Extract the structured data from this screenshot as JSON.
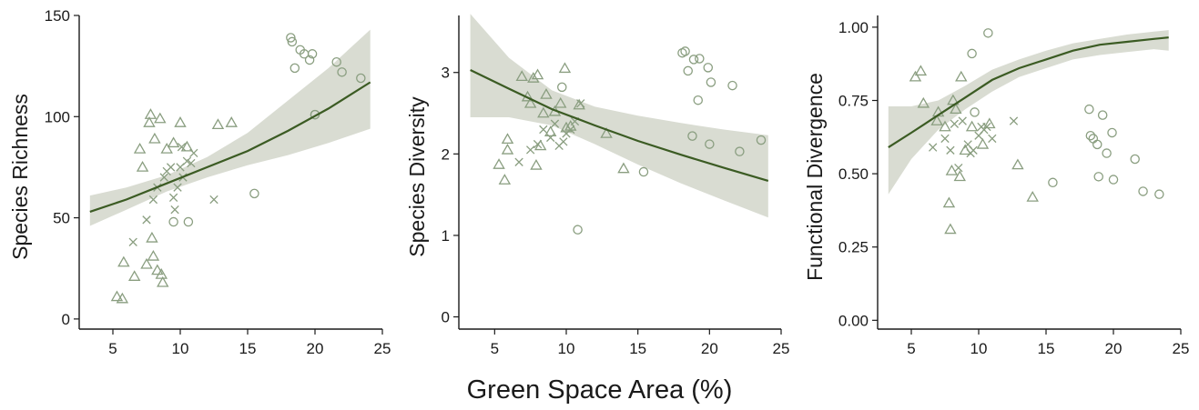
{
  "figure": {
    "shared_xlabel": "Green Space Area (%)"
  },
  "colors": {
    "point": "#8a9e80",
    "line": "#3b5b23",
    "band": "#d9dcd2",
    "axis": "#1a1a1a"
  },
  "chart_data": [
    {
      "type": "scatter",
      "title": "",
      "xlabel": "",
      "ylabel": "Species Richness",
      "xlim": [
        2.5,
        25
      ],
      "ylim": [
        -5,
        150
      ],
      "xticks": [
        5,
        10,
        15,
        20,
        25
      ],
      "yticks": [
        0,
        50,
        100,
        150
      ],
      "ytick_labels": [
        "0",
        "50",
        "100",
        "150"
      ],
      "grid": false,
      "fit": {
        "x": [
          3.3,
          6,
          9,
          12,
          15,
          18,
          21,
          24.1
        ],
        "y": [
          53,
          59,
          67,
          75,
          83,
          93,
          104,
          117
        ],
        "lower": [
          46,
          54,
          63,
          70,
          76,
          81,
          87,
          94
        ],
        "upper": [
          61,
          65,
          71,
          80,
          92,
          108,
          124,
          143
        ]
      },
      "series": [
        {
          "marker": "triangle",
          "x": [
            5.3,
            5.7,
            5.8,
            6.6,
            7.0,
            7.2,
            7.5,
            7.7,
            7.8,
            7.9,
            8.0,
            8.1,
            8.3,
            8.5,
            8.6,
            8.7,
            9.0,
            9.5,
            10.0,
            10.5,
            12.8,
            13.8
          ],
          "y": [
            11,
            10,
            28,
            21,
            84,
            75,
            27,
            97,
            101,
            40,
            31,
            89,
            24,
            99,
            22,
            18,
            84,
            87,
            97,
            85,
            96,
            97
          ]
        },
        {
          "marker": "circle",
          "x": [
            15.5,
            18.2,
            18.3,
            18.5,
            18.9,
            19.2,
            19.6,
            19.8,
            20.0,
            21.6,
            22.0,
            23.4,
            20.0,
            9.5,
            10.6
          ],
          "y": [
            62,
            139,
            137,
            124,
            133,
            131,
            128,
            131,
            101,
            127,
            122,
            119,
            101,
            48,
            48
          ]
        },
        {
          "marker": "x",
          "x": [
            6.5,
            7.5,
            8.0,
            8.3,
            8.8,
            9.0,
            9.3,
            9.5,
            9.8,
            10.0,
            10.2,
            10.5,
            10.8,
            11.0,
            12.5,
            9.6,
            10.1
          ],
          "y": [
            38,
            49,
            59,
            65,
            70,
            73,
            75,
            60,
            65,
            75,
            70,
            78,
            77,
            82,
            59,
            54,
            85
          ]
        }
      ]
    },
    {
      "type": "scatter",
      "title": "",
      "xlabel": "",
      "ylabel": "Species Diversity",
      "xlim": [
        2.5,
        25
      ],
      "ylim": [
        -0.15,
        3.7
      ],
      "xticks": [
        5,
        10,
        15,
        20,
        25
      ],
      "yticks": [
        0,
        1,
        2,
        3
      ],
      "ytick_labels": [
        "0",
        "1",
        "2",
        "3"
      ],
      "grid": false,
      "fit": {
        "x": [
          3.3,
          6,
          9,
          12,
          15,
          18,
          21,
          24.1
        ],
        "y": [
          3.03,
          2.8,
          2.55,
          2.35,
          2.16,
          1.99,
          1.83,
          1.67
        ],
        "lower": [
          2.45,
          2.45,
          2.35,
          2.12,
          1.87,
          1.64,
          1.43,
          1.22
        ],
        "upper": [
          3.72,
          3.18,
          2.78,
          2.58,
          2.47,
          2.38,
          2.3,
          2.23
        ]
      },
      "series": [
        {
          "marker": "triangle",
          "x": [
            5.3,
            5.7,
            5.9,
            6.9,
            7.3,
            7.5,
            7.7,
            7.9,
            8.0,
            8.2,
            8.6,
            8.9,
            9.2,
            9.6,
            9.9,
            10.3,
            10.9,
            12.8,
            14.0,
            5.9,
            8.4,
            10.0
          ],
          "y": [
            1.87,
            1.68,
            2.18,
            2.95,
            2.7,
            2.62,
            2.93,
            1.86,
            2.97,
            2.1,
            2.73,
            2.27,
            2.52,
            2.62,
            3.05,
            2.34,
            2.6,
            2.25,
            1.82,
            2.05,
            2.5,
            2.32
          ]
        },
        {
          "marker": "circle",
          "x": [
            18.1,
            18.3,
            18.5,
            18.9,
            19.3,
            19.9,
            20.1,
            18.8,
            19.2,
            21.6,
            22.1,
            23.6,
            20.0,
            9.7,
            15.4,
            10.8
          ],
          "y": [
            3.24,
            3.26,
            3.02,
            3.16,
            3.17,
            3.06,
            2.88,
            2.22,
            2.66,
            2.84,
            2.03,
            2.17,
            2.12,
            2.82,
            1.78,
            1.07
          ]
        },
        {
          "marker": "x",
          "x": [
            6.7,
            7.5,
            8.0,
            8.4,
            8.9,
            9.2,
            9.5,
            9.8,
            10.0,
            10.3,
            11.0,
            10.6
          ],
          "y": [
            1.9,
            2.05,
            2.12,
            2.3,
            2.2,
            2.37,
            2.1,
            2.15,
            2.25,
            2.3,
            2.62,
            2.4
          ]
        }
      ]
    },
    {
      "type": "scatter",
      "title": "",
      "xlabel": "",
      "ylabel": "Functional Divergence",
      "xlim": [
        2.5,
        25
      ],
      "ylim": [
        -0.03,
        1.04
      ],
      "xticks": [
        5,
        10,
        15,
        20,
        25
      ],
      "yticks": [
        0,
        0.25,
        0.5,
        0.75,
        1.0
      ],
      "ytick_labels": [
        "0.00",
        "0.25",
        "0.50",
        "0.75",
        "1.00"
      ],
      "grid": false,
      "fit": {
        "x": [
          3.3,
          5,
          7,
          9,
          11,
          13,
          15,
          17,
          19,
          21,
          23,
          24.1
        ],
        "y": [
          0.59,
          0.64,
          0.7,
          0.76,
          0.82,
          0.86,
          0.89,
          0.92,
          0.94,
          0.95,
          0.96,
          0.965
        ],
        "lower": [
          0.43,
          0.55,
          0.65,
          0.72,
          0.78,
          0.83,
          0.86,
          0.89,
          0.905,
          0.915,
          0.925,
          0.92
        ],
        "upper": [
          0.73,
          0.73,
          0.75,
          0.8,
          0.855,
          0.89,
          0.92,
          0.945,
          0.96,
          0.975,
          0.985,
          0.99
        ]
      },
      "series": [
        {
          "marker": "triangle",
          "x": [
            5.3,
            5.7,
            5.9,
            6.9,
            7.5,
            7.8,
            7.9,
            8.0,
            8.1,
            8.3,
            8.6,
            8.7,
            9.0,
            9.5,
            10.3,
            10.8,
            12.9,
            14.0,
            7.0
          ],
          "y": [
            0.83,
            0.85,
            0.74,
            0.68,
            0.66,
            0.4,
            0.31,
            0.51,
            0.75,
            0.72,
            0.49,
            0.83,
            0.58,
            0.66,
            0.6,
            0.67,
            0.53,
            0.42,
            0.71
          ]
        },
        {
          "marker": "circle",
          "x": [
            9.5,
            10.7,
            15.5,
            18.2,
            18.3,
            18.5,
            18.8,
            18.9,
            19.2,
            19.5,
            19.9,
            20.0,
            21.6,
            22.2,
            23.4,
            9.7
          ],
          "y": [
            0.91,
            0.98,
            0.47,
            0.72,
            0.63,
            0.62,
            0.6,
            0.49,
            0.7,
            0.57,
            0.64,
            0.48,
            0.55,
            0.44,
            0.43,
            0.71
          ]
        },
        {
          "marker": "x",
          "x": [
            6.6,
            7.5,
            7.9,
            8.2,
            8.8,
            9.2,
            9.6,
            10.0,
            10.2,
            10.4,
            10.6,
            11.0,
            12.6,
            9.4,
            8.5
          ],
          "y": [
            0.59,
            0.62,
            0.58,
            0.67,
            0.68,
            0.6,
            0.58,
            0.63,
            0.66,
            0.65,
            0.66,
            0.62,
            0.68,
            0.57,
            0.52
          ]
        }
      ]
    }
  ]
}
